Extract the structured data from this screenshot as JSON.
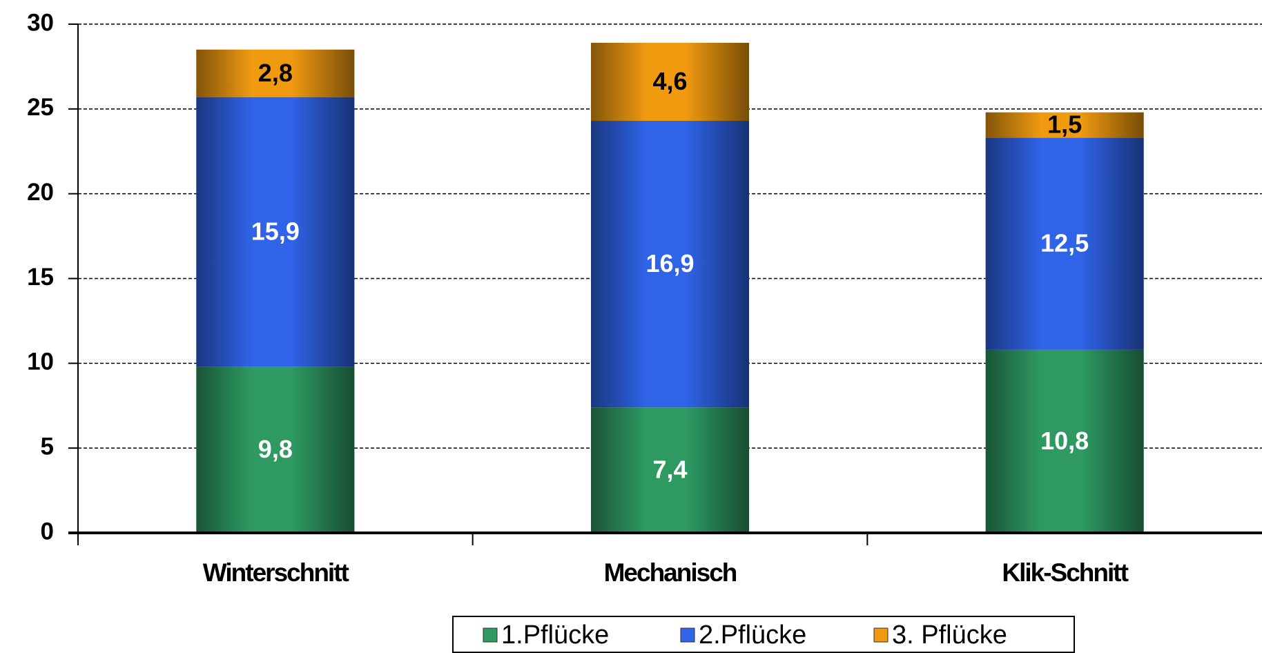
{
  "chart_data": {
    "type": "stacked_bar",
    "categories": [
      "Winterschnitt",
      "Mechanisch",
      "Klik-Schnitt"
    ],
    "series": [
      {
        "name": "1.Pflücke",
        "color": "#2e9a62",
        "label_color": "#ffffff",
        "values": [
          9.8,
          7.4,
          10.8
        ],
        "value_labels": [
          "9,8",
          "7,4",
          "10,8"
        ]
      },
      {
        "name": "2.Pflücke",
        "color": "#2f63e8",
        "label_color": "#ffffff",
        "values": [
          15.9,
          16.9,
          12.5
        ],
        "value_labels": [
          "15,9",
          "16,9",
          "12,5"
        ]
      },
      {
        "name": "3. Pflücke",
        "color": "#f09a10",
        "label_color": "#000000",
        "values": [
          2.8,
          4.6,
          1.5
        ],
        "value_labels": [
          "2,8",
          "4,6",
          "1,5"
        ]
      }
    ],
    "ylim": [
      0,
      30
    ],
    "yticks": [
      0,
      5,
      10,
      15,
      20,
      25,
      30
    ],
    "grid": true,
    "legend": "bottom"
  }
}
